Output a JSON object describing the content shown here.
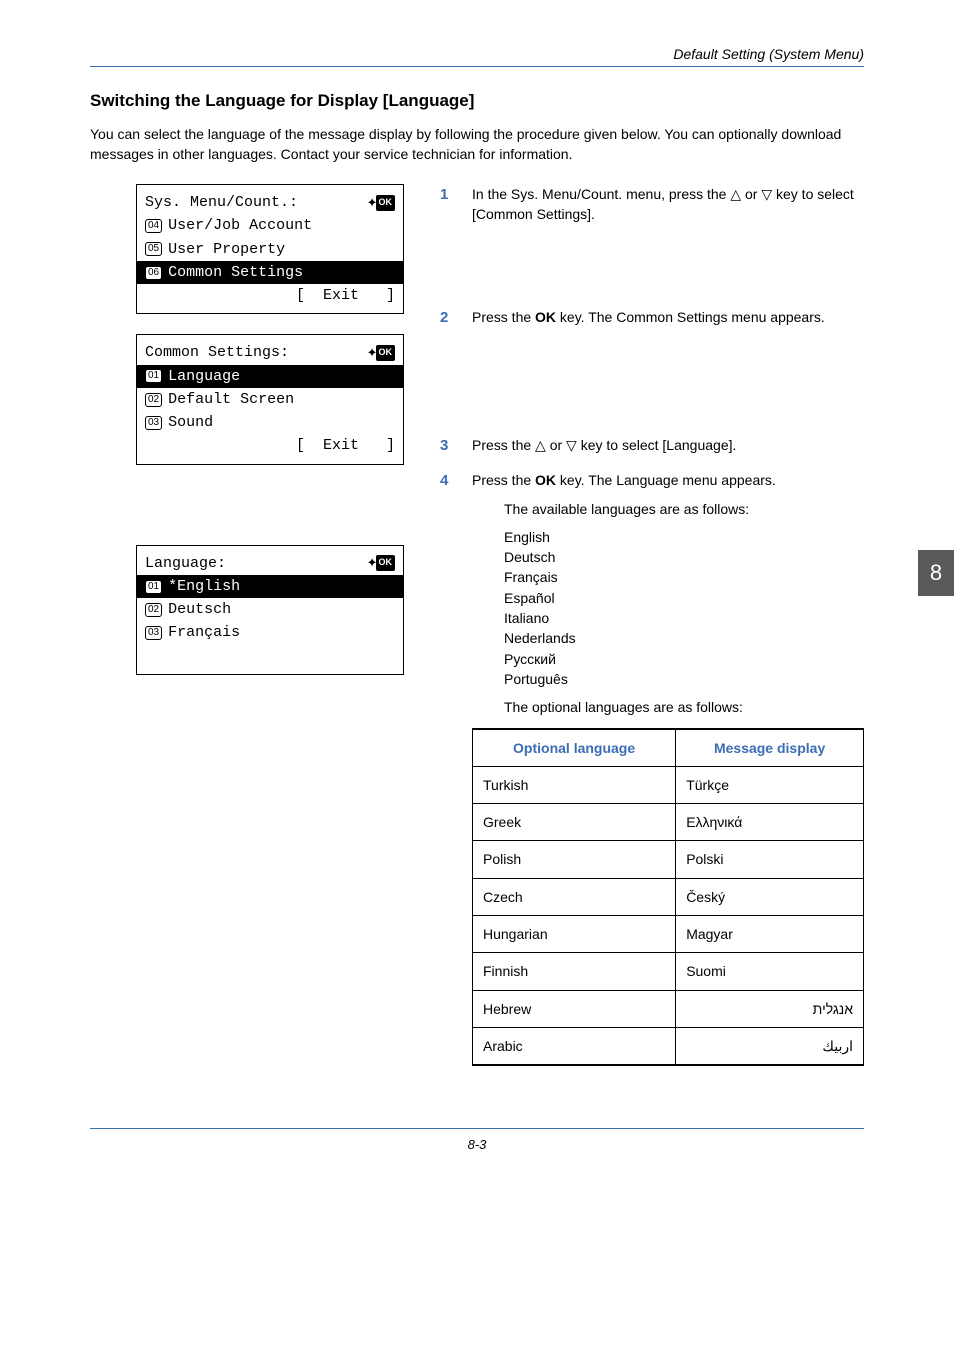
{
  "header": {
    "running": "Default Setting (System Menu)"
  },
  "section": {
    "title": "Switching the Language for Display [Language]",
    "intro": "You can select the language of the message display by following the procedure given below. You can optionally download messages in other languages. Contact your service technician for information."
  },
  "lcd1": {
    "title_l": "Sys. Menu/Count.",
    "r1_num": "04",
    "r1_txt": "User/Job Account",
    "r2_num": "05",
    "r2_txt": "User Property",
    "r3_num": "06",
    "r3_txt": "Common Settings",
    "exit": "[  Exit   ]"
  },
  "lcd2": {
    "title_l": "Common Settings:",
    "r1_num": "01",
    "r1_txt": "Language",
    "r2_num": "02",
    "r2_txt": "Default Screen",
    "r3_num": "03",
    "r3_txt": "Sound",
    "exit": "[  Exit   ]"
  },
  "lcd3": {
    "title_l": "Language:",
    "r1_num": "01",
    "r1_txt": "*English",
    "r2_num": "02",
    "r2_txt": "Deutsch",
    "r3_num": "03",
    "r3_txt": "Français"
  },
  "steps": {
    "s1": "In the Sys. Menu/Count. menu, press the △ or ▽ key to select [Common Settings].",
    "s2a": "Press the ",
    "s2b": "OK",
    "s2c": " key. The Common Settings menu appears.",
    "s3a": "Press the ",
    "s3b": " or ",
    "s3c": " key to select [Language].",
    "s4a": "Press the ",
    "s4b": "OK",
    "s4c": " key. The Language menu appears.",
    "avail": "The available languages are as follows:",
    "langs": [
      "English",
      "Deutsch",
      "Français",
      "Español",
      "Italiano",
      "Nederlands",
      "Русский",
      "Português"
    ],
    "opt_intro": "The optional languages are as follows:"
  },
  "opt_table": {
    "h1": "Optional language",
    "h2": "Message display",
    "rows": [
      {
        "l": "Turkish",
        "m": "Türkçe",
        "rtl": false
      },
      {
        "l": "Greek",
        "m": "Ελληνικά",
        "rtl": false
      },
      {
        "l": "Polish",
        "m": "Polski",
        "rtl": false
      },
      {
        "l": "Czech",
        "m": "Český",
        "rtl": false
      },
      {
        "l": "Hungarian",
        "m": "Magyar",
        "rtl": false
      },
      {
        "l": "Finnish",
        "m": "Suomi",
        "rtl": false
      },
      {
        "l": "Hebrew",
        "m": "אנגלית",
        "rtl": true
      },
      {
        "l": "Arabic",
        "m": "اربيك",
        "rtl": true
      }
    ]
  },
  "sidetab": "8",
  "pagenum": "8-3",
  "glyph": {
    "ok": "OK",
    "tri_up": "△",
    "tri_dn": "▽",
    "nav": "✦"
  }
}
